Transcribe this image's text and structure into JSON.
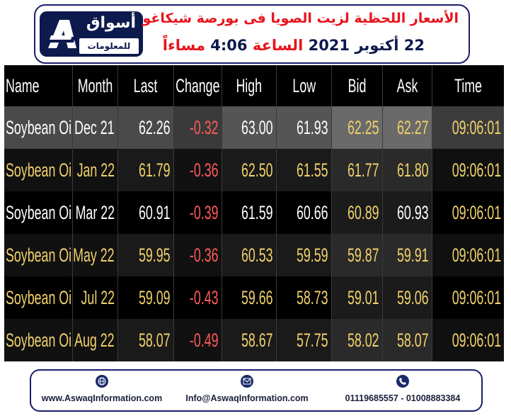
{
  "header": {
    "logo_ar": "أسواق",
    "logo_ar_sub": "للمعلومات",
    "title_line1": "الأسعار اللحظية لزيت الصويا فى بورصة شيكاغو",
    "title_line2_day": "22",
    "title_line2_month": "أكتوبر",
    "title_line2_year": "2021",
    "title_line2_at": "الساعة",
    "title_line2_time": "4:06",
    "title_line2_period": "مساءاً"
  },
  "table": {
    "columns": [
      "Name",
      "Month",
      "Last",
      "Change",
      "High",
      "Low",
      "Bid",
      "Ask",
      "Time"
    ],
    "rows": [
      [
        "Soybean Oil",
        "Dec 21",
        "62.26",
        "-0.32",
        "63.00",
        "61.93",
        "62.25",
        "62.27",
        "09:06:01"
      ],
      [
        "Soybean Oil",
        "Jan 22",
        "61.79",
        "-0.36",
        "62.50",
        "61.55",
        "61.77",
        "61.80",
        "09:06:01"
      ],
      [
        "Soybean Oil",
        "Mar 22",
        "60.91",
        "-0.39",
        "61.59",
        "60.66",
        "60.89",
        "60.93",
        "09:06:01"
      ],
      [
        "Soybean Oil",
        "May 22",
        "59.95",
        "-0.36",
        "60.53",
        "59.59",
        "59.87",
        "59.91",
        "09:06:01"
      ],
      [
        "Soybean Oil",
        "Jul 22",
        "59.09",
        "-0.43",
        "59.66",
        "58.73",
        "59.01",
        "59.06",
        "09:06:01"
      ],
      [
        "Soybean Oil",
        "Aug 22",
        "58.07",
        "-0.49",
        "58.67",
        "57.75",
        "58.02",
        "58.07",
        "09:06:01"
      ]
    ]
  },
  "footer": {
    "website": "www.AswaqInformation.com",
    "email": "Info@AswaqInformation.com",
    "phones": "01119685557 - 01008883384"
  },
  "colors": {
    "brand_navy": "#0d1a4d",
    "title_red": "#e8141c",
    "value_yellow": "#f2d26b",
    "change_red": "#ff5a5a"
  },
  "icons": [
    "logo-mark-icon",
    "globe-icon",
    "mail-icon",
    "phone-icon"
  ]
}
